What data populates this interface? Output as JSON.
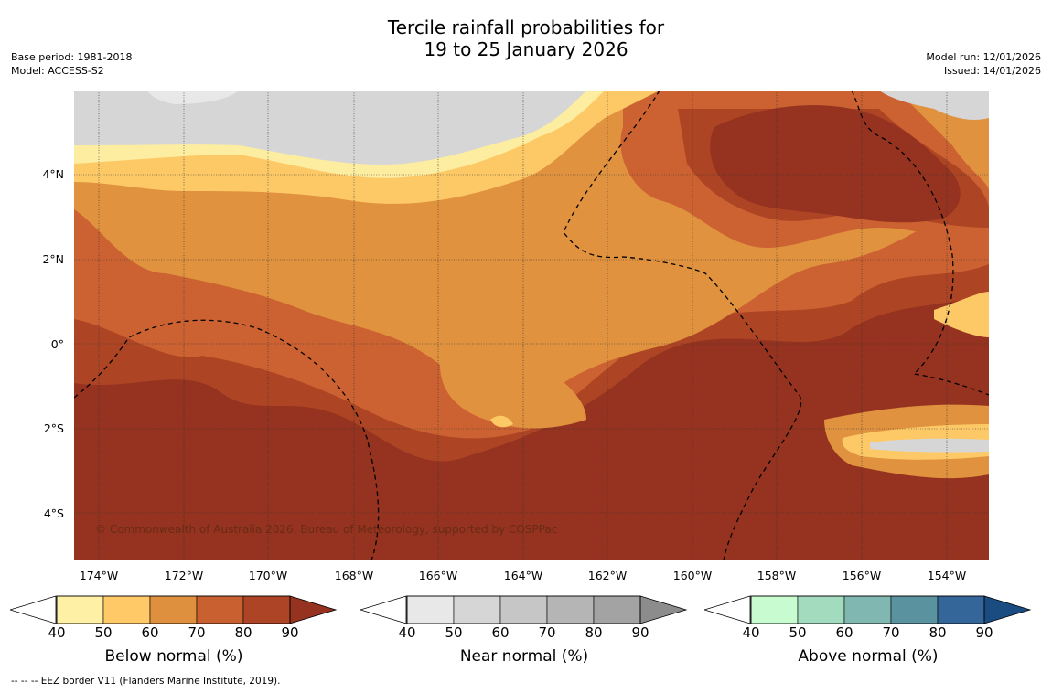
{
  "title": {
    "line1": "Tercile rainfall probabilities for",
    "line2": "19 to 25 January 2026"
  },
  "meta_left": {
    "base_period": "Base period: 1981-2018",
    "model": "Model: ACCESS-S2"
  },
  "meta_right": {
    "model_run": "Model run: 12/01/2026",
    "issued": "Issued: 14/01/2026"
  },
  "map": {
    "latitude_labels": [
      "4°N",
      "2°N",
      "0°",
      "2°S",
      "4°S"
    ],
    "longitude_labels": [
      "174°W",
      "172°W",
      "170°W",
      "168°W",
      "166°W",
      "164°W",
      "162°W",
      "160°W",
      "158°W",
      "156°W",
      "154°W"
    ],
    "copyright": "© Commonwealth of Australia 2026, Bureau of Meteorology, supported by COSPPac",
    "colors": {
      "bn50": "#fdeda0",
      "bn60": "#fdc967",
      "bn70": "#e0923f",
      "bn80": "#cc6231",
      "bn90": "#ad4424",
      "bn100": "#953220",
      "nn": "#d6d6d6",
      "nn_light": "#e8e8e8"
    }
  },
  "colorbars": [
    {
      "label": "Below normal (%)",
      "ticks": [
        "40",
        "50",
        "60",
        "70",
        "80",
        "90"
      ],
      "colors": [
        "#fef0a5",
        "#fec966",
        "#df903f",
        "#c86030",
        "#ac4425",
        "#953220"
      ]
    },
    {
      "label": "Near normal (%)",
      "ticks": [
        "40",
        "50",
        "60",
        "70",
        "80",
        "90"
      ],
      "colors": [
        "#e8e8e8",
        "#d6d6d6",
        "#c6c6c6",
        "#b5b5b5",
        "#a3a3a3",
        "#8c8c8c"
      ]
    },
    {
      "label": "Above normal (%)",
      "ticks": [
        "40",
        "50",
        "60",
        "70",
        "80",
        "90"
      ],
      "colors": [
        "#c8fcd0",
        "#a3dbbf",
        "#80b8b1",
        "#5a92a0",
        "#346699",
        "#1a4c82"
      ]
    }
  ],
  "footnote": "--  --  -- EEZ border V11 (Flanders Marine Institute, 2019)."
}
